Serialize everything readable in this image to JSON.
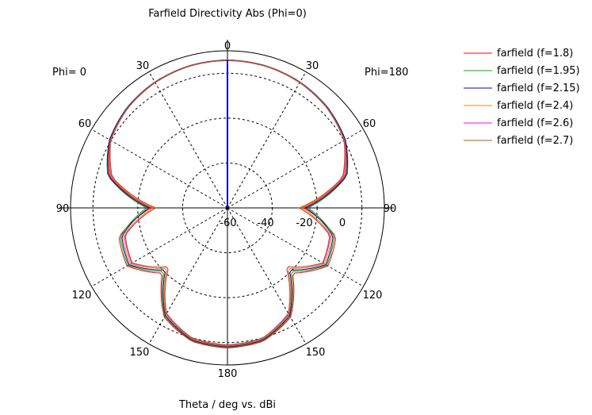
{
  "chart_data": {
    "type": "polar",
    "title": "Farfield Directivity Abs (Phi=0)",
    "xlabel": "Theta / deg vs. dBi",
    "left_label": "Phi=  0",
    "right_label": "Phi=180",
    "radial_ticks": [
      "-60",
      "-40",
      "-20",
      "0"
    ],
    "radial_range_dbi": [
      -60,
      10
    ],
    "angle_tick_labels": {
      "top": "0",
      "upper_left": "30",
      "upper_right": "30",
      "mid_upper_left": "60",
      "mid_upper_right": "60",
      "left": "90",
      "right": "90",
      "mid_lower_left": "120",
      "mid_lower_right": "120",
      "lower_left": "150",
      "lower_right": "150",
      "bottom": "180"
    },
    "theta_deg": [
      0,
      15,
      30,
      45,
      60,
      75,
      90,
      105,
      120,
      135,
      150,
      165,
      180
    ],
    "series": [
      {
        "name": "farfield (f=1.8)",
        "color": "#ff0000",
        "values": [
          5.9,
          5.6,
          4.7,
          3.1,
          0.5,
          -5.6,
          -26.0,
          -9.9,
          -8.3,
          -19.0,
          -3.7,
          1.5,
          2.4
        ]
      },
      {
        "name": "farfield (f=1.95)",
        "color": "#00b000",
        "values": [
          5.9,
          5.6,
          4.8,
          3.3,
          0.8,
          -4.7,
          -24.0,
          -10.6,
          -8.9,
          -20.0,
          -4.2,
          1.2,
          2.1
        ]
      },
      {
        "name": "farfield (f=2.15)",
        "color": "#0000c0",
        "values": [
          5.8,
          5.5,
          4.7,
          3.2,
          0.7,
          -5.0,
          -25.0,
          -11.2,
          -9.4,
          -21.0,
          -4.6,
          0.9,
          1.8
        ]
      },
      {
        "name": "farfield (f=2.4)",
        "color": "#ff8000",
        "values": [
          5.7,
          5.4,
          4.6,
          3.0,
          0.3,
          -6.0,
          -27.0,
          -11.9,
          -10.1,
          -22.0,
          -5.1,
          0.6,
          1.5
        ]
      },
      {
        "name": "farfield (f=2.6)",
        "color": "#ff00ff",
        "values": [
          5.7,
          5.4,
          4.5,
          2.9,
          0.1,
          -6.5,
          -28.0,
          -12.5,
          -10.7,
          -23.0,
          -5.5,
          0.3,
          1.2
        ]
      },
      {
        "name": "farfield (f=2.7)",
        "color": "#b06010",
        "values": [
          5.6,
          5.3,
          4.4,
          2.8,
          0.0,
          -6.8,
          -28.0,
          -12.8,
          -11.0,
          -23.0,
          -5.7,
          0.1,
          1.0
        ]
      }
    ],
    "main_lobe_marker": {
      "theta_deg": 0,
      "color": "#0000c0"
    },
    "grid": true
  }
}
